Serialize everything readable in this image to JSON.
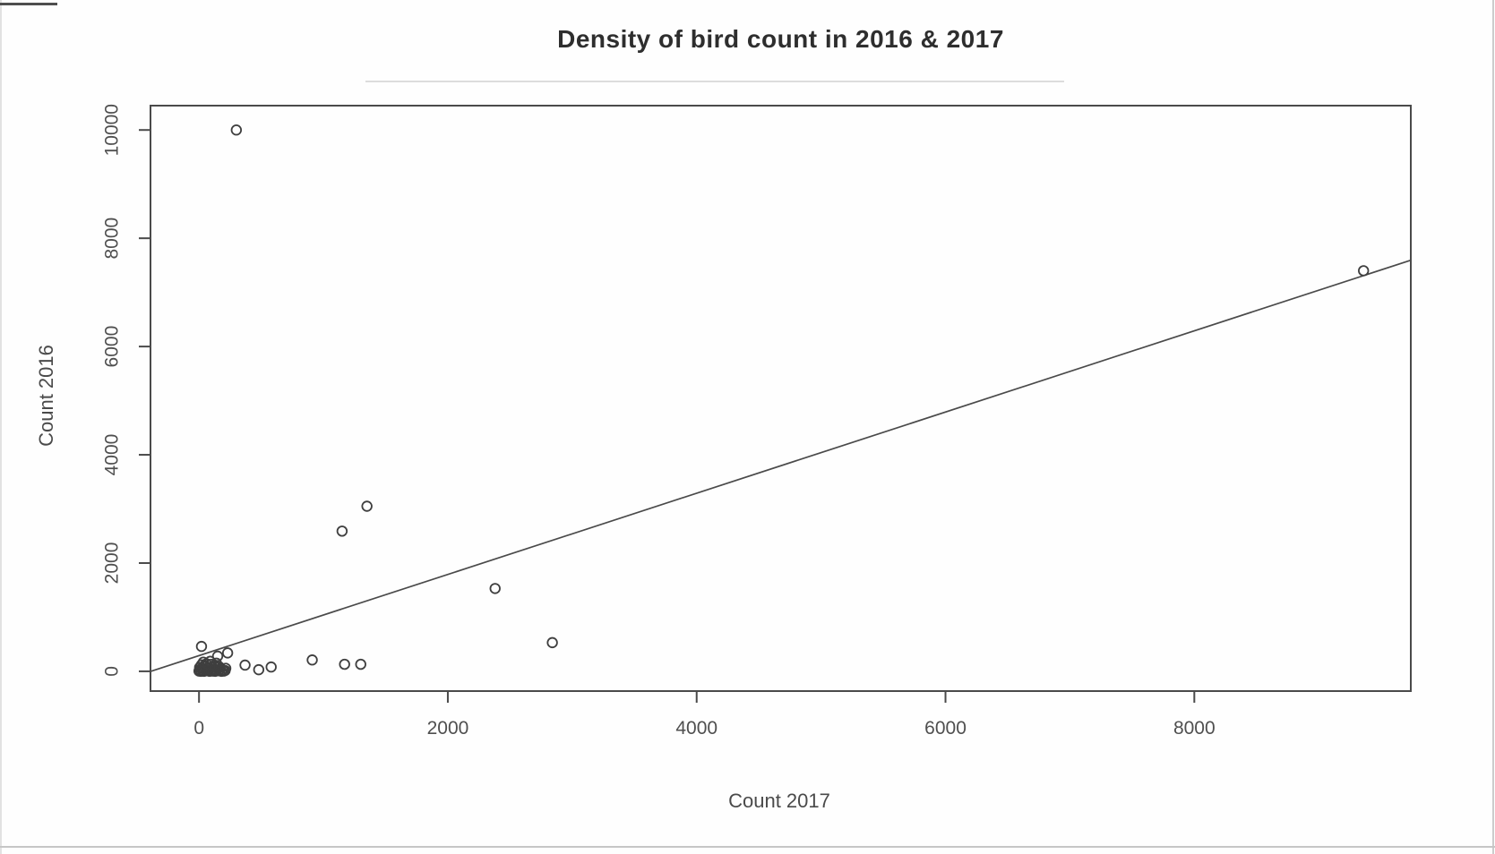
{
  "chart_data": {
    "type": "scatter",
    "title": "Density of bird count in 2016 & 2017",
    "xlabel": "Count 2017",
    "ylabel": "Count 2016",
    "xlim": [
      -390,
      9740
    ],
    "ylim": [
      -365,
      10450
    ],
    "x_ticks": [
      0,
      2000,
      4000,
      6000,
      8000
    ],
    "y_ticks": [
      0,
      2000,
      4000,
      6000,
      8000,
      10000
    ],
    "grid": false,
    "legend": false,
    "marker": "open-circle",
    "regression_line": {
      "intercept": 290,
      "slope": 0.75
    },
    "points": [
      [
        20,
        460
      ],
      [
        300,
        10000
      ],
      [
        370,
        115
      ],
      [
        480,
        30
      ],
      [
        580,
        80
      ],
      [
        910,
        210
      ],
      [
        1170,
        130
      ],
      [
        1300,
        130
      ],
      [
        1150,
        2590
      ],
      [
        1350,
        3050
      ],
      [
        2380,
        1530
      ],
      [
        2840,
        530
      ],
      [
        9360,
        7400
      ],
      [
        230,
        340
      ],
      [
        150,
        280
      ]
    ],
    "origin_cluster": [
      [
        0,
        5
      ],
      [
        8,
        30
      ],
      [
        15,
        0
      ],
      [
        25,
        60
      ],
      [
        30,
        15
      ],
      [
        40,
        0
      ],
      [
        50,
        35
      ],
      [
        55,
        90
      ],
      [
        65,
        10
      ],
      [
        75,
        55
      ],
      [
        85,
        0
      ],
      [
        95,
        25
      ],
      [
        100,
        80
      ],
      [
        110,
        5
      ],
      [
        120,
        45
      ],
      [
        130,
        0
      ],
      [
        140,
        20
      ],
      [
        150,
        70
      ],
      [
        160,
        10
      ],
      [
        170,
        40
      ],
      [
        180,
        0
      ],
      [
        190,
        25
      ],
      [
        200,
        5
      ],
      [
        210,
        15
      ],
      [
        20,
        120
      ],
      [
        60,
        140
      ],
      [
        100,
        130
      ],
      [
        140,
        150
      ],
      [
        35,
        170
      ],
      [
        90,
        185
      ],
      [
        5,
        70
      ],
      [
        45,
        110
      ],
      [
        125,
        95
      ],
      [
        165,
        80
      ],
      [
        215,
        55
      ]
    ],
    "colors": {
      "marker": "#3f3f3f",
      "regression": "#4a4a4a",
      "axis": "#4a4a4a",
      "title_text": "#2e2e2e",
      "tick_text": "#4f4f4f"
    }
  }
}
